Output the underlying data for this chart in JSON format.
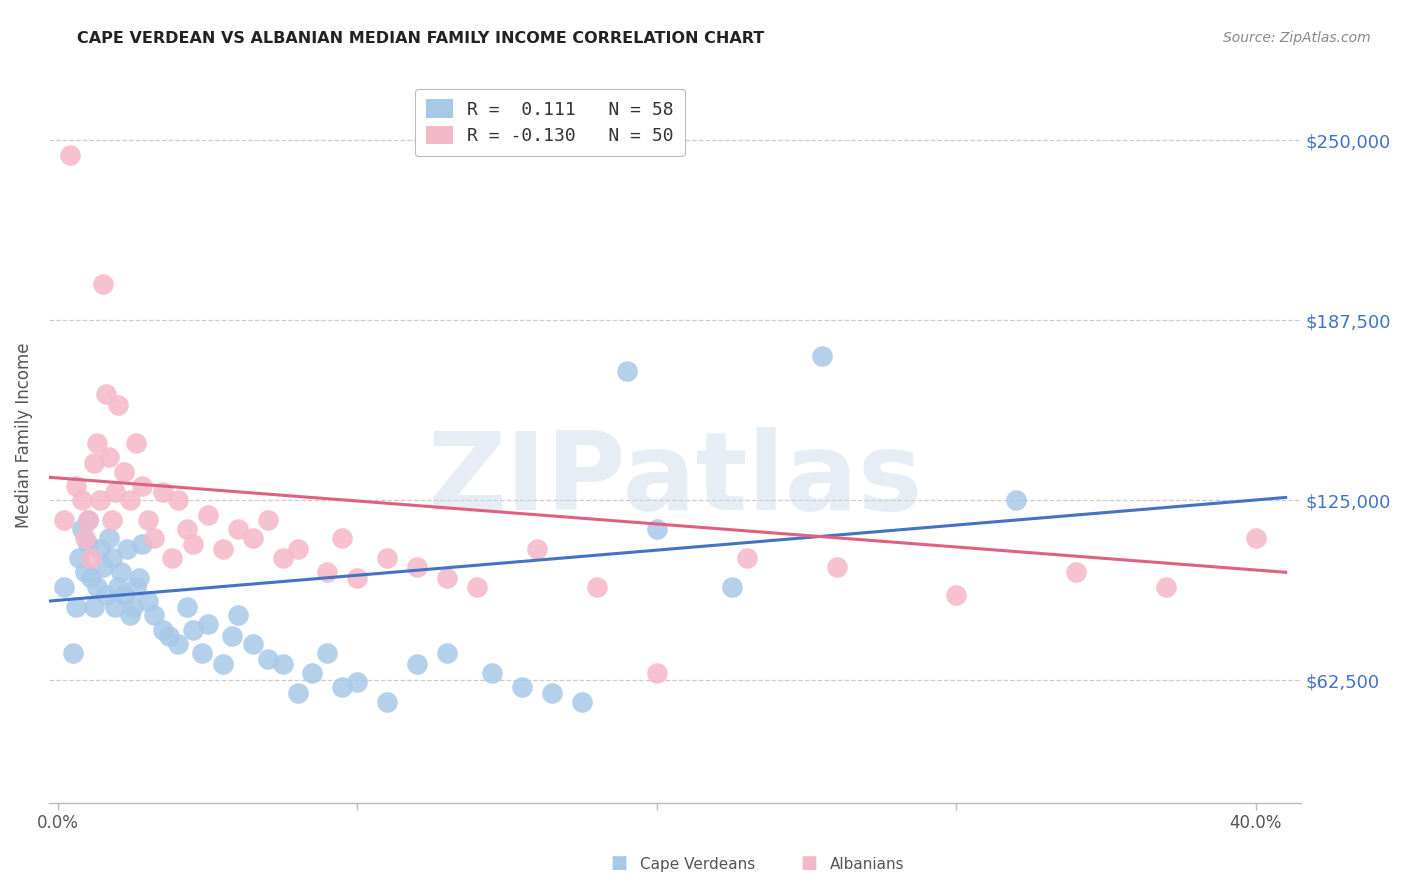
{
  "title": "CAPE VERDEAN VS ALBANIAN MEDIAN FAMILY INCOME CORRELATION CHART",
  "source": "Source: ZipAtlas.com",
  "xlabel_ticks": [
    "0.0%",
    "",
    "",
    "",
    "40.0%"
  ],
  "xlabel_tick_vals": [
    0.0,
    0.1,
    0.2,
    0.3,
    0.4
  ],
  "ylabel_ticks": [
    "$62,500",
    "$125,000",
    "$187,500",
    "$250,000"
  ],
  "ylabel_tick_vals": [
    62500,
    125000,
    187500,
    250000
  ],
  "xlim": [
    -0.003,
    0.415
  ],
  "ylim": [
    20000,
    275000
  ],
  "ylabel": "Median Family Income",
  "watermark": "ZIPatlas",
  "cape_verdean_x": [
    0.002,
    0.005,
    0.006,
    0.007,
    0.008,
    0.009,
    0.01,
    0.01,
    0.011,
    0.012,
    0.013,
    0.014,
    0.015,
    0.016,
    0.017,
    0.018,
    0.019,
    0.02,
    0.021,
    0.022,
    0.023,
    0.024,
    0.025,
    0.026,
    0.027,
    0.028,
    0.03,
    0.032,
    0.035,
    0.037,
    0.04,
    0.043,
    0.045,
    0.048,
    0.05,
    0.055,
    0.058,
    0.06,
    0.065,
    0.07,
    0.075,
    0.08,
    0.085,
    0.09,
    0.095,
    0.1,
    0.11,
    0.12,
    0.13,
    0.145,
    0.155,
    0.165,
    0.175,
    0.19,
    0.2,
    0.225,
    0.255,
    0.32
  ],
  "cape_verdean_y": [
    95000,
    72000,
    88000,
    105000,
    115000,
    100000,
    110000,
    118000,
    98000,
    88000,
    95000,
    108000,
    102000,
    92000,
    112000,
    105000,
    88000,
    95000,
    100000,
    92000,
    108000,
    85000,
    88000,
    95000,
    98000,
    110000,
    90000,
    85000,
    80000,
    78000,
    75000,
    88000,
    80000,
    72000,
    82000,
    68000,
    78000,
    85000,
    75000,
    70000,
    68000,
    58000,
    65000,
    72000,
    60000,
    62000,
    55000,
    68000,
    72000,
    65000,
    60000,
    58000,
    55000,
    170000,
    115000,
    95000,
    175000,
    125000
  ],
  "albanian_x": [
    0.002,
    0.004,
    0.006,
    0.008,
    0.009,
    0.01,
    0.011,
    0.012,
    0.013,
    0.014,
    0.015,
    0.016,
    0.017,
    0.018,
    0.019,
    0.02,
    0.022,
    0.024,
    0.026,
    0.028,
    0.03,
    0.032,
    0.035,
    0.038,
    0.04,
    0.043,
    0.045,
    0.05,
    0.055,
    0.06,
    0.065,
    0.07,
    0.075,
    0.08,
    0.09,
    0.095,
    0.1,
    0.11,
    0.12,
    0.13,
    0.14,
    0.16,
    0.18,
    0.2,
    0.23,
    0.26,
    0.3,
    0.34,
    0.37,
    0.4
  ],
  "albanian_y": [
    118000,
    245000,
    130000,
    125000,
    112000,
    118000,
    105000,
    138000,
    145000,
    125000,
    200000,
    162000,
    140000,
    118000,
    128000,
    158000,
    135000,
    125000,
    145000,
    130000,
    118000,
    112000,
    128000,
    105000,
    125000,
    115000,
    110000,
    120000,
    108000,
    115000,
    112000,
    118000,
    105000,
    108000,
    100000,
    112000,
    98000,
    105000,
    102000,
    98000,
    95000,
    108000,
    95000,
    65000,
    105000,
    102000,
    92000,
    100000,
    95000,
    112000
  ],
  "blue_color": "#a8c8e8",
  "pink_color": "#f5b8c8",
  "blue_line_color": "#4472c4",
  "pink_line_color": "#e06080",
  "background_color": "#ffffff",
  "grid_color": "#cccccc",
  "title_color": "#222222",
  "right_tick_color": "#4472c4",
  "watermark_color": "#c8d8e8",
  "watermark_alpha": 0.45,
  "legend_label_blue": "R =  0.111   N = 58",
  "legend_label_pink": "R = -0.130   N = 50"
}
